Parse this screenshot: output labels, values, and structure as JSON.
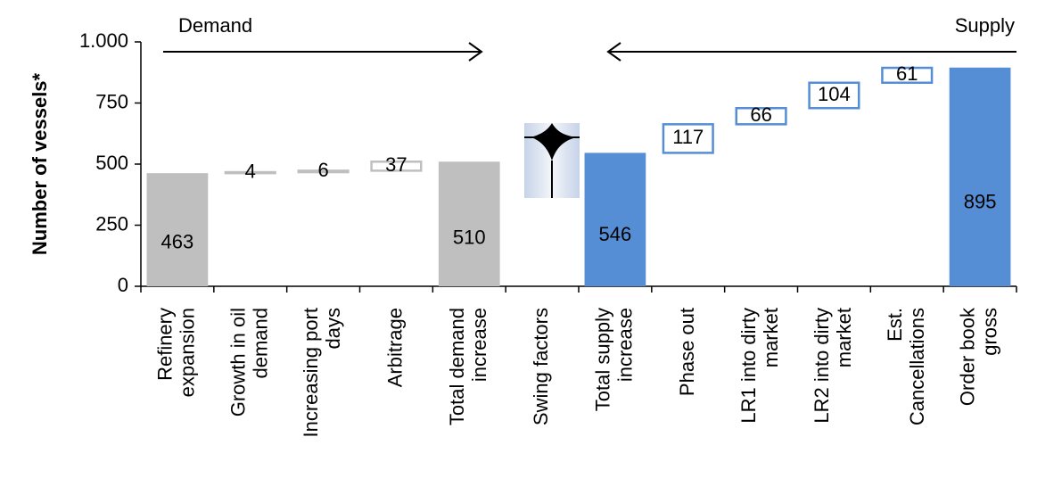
{
  "chart_data": {
    "type": "waterfall",
    "y_label": "Number of vessels*",
    "annotations": [
      "Demand",
      "Supply"
    ],
    "categories": [
      "Refinery\nexpansion",
      "Growth in oil\ndemand",
      "Increasing port\ndays",
      "Arbitrage",
      "Total demand\nincrease",
      "Swing factors",
      "Total supply\nincrease",
      "Phase out",
      "LR1 into dirty\nmarket",
      "LR2 into dirty\nmarket",
      "Est.\nCancellations",
      "Order book\ngross"
    ],
    "values": [
      463,
      4,
      6,
      37,
      510,
      null,
      546,
      117,
      66,
      104,
      61,
      895
    ],
    "totals": [
      true,
      false,
      false,
      false,
      true,
      false,
      true,
      false,
      false,
      false,
      false,
      true
    ],
    "colors": [
      "#bfbfbf",
      "#bfbfbf",
      "#bfbfbf",
      "#bfbfbf",
      "#bfbfbf",
      "#bfbfbf",
      "#558ed5",
      "#558ed5",
      "#558ed5",
      "#558ed5",
      "#558ed5",
      "#558ed5"
    ],
    "ylim": [
      0,
      1000
    ],
    "yticks": [
      0,
      250,
      500,
      750,
      {
        "value": 1000,
        "label": "1.000"
      }
    ]
  }
}
